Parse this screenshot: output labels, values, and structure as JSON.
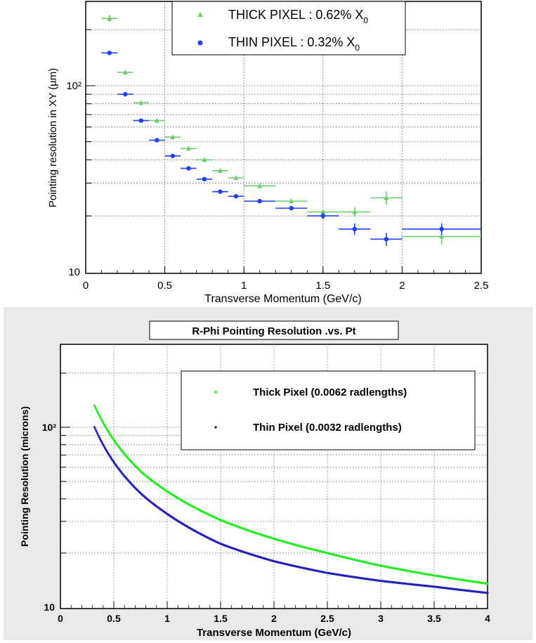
{
  "chart_data": [
    {
      "type": "scatter",
      "title": "",
      "xlabel": "Transverse Momentum  (GeV/c)",
      "ylabel": "Pointing resolution in XY (µm)",
      "xlim": [
        0,
        2.5
      ],
      "ylim": [
        10,
        300
      ],
      "yscale": "log",
      "grid": true,
      "legend_position": "top-center",
      "x_ticks": [
        "0",
        "0.5",
        "1",
        "1.5",
        "2",
        "2.5"
      ],
      "y_ticks": [
        "10",
        "10²"
      ],
      "error_bars": true,
      "series": [
        {
          "name": "THICK PIXEL : 0.62% X",
          "name_subscript": "0",
          "color": "#6ccf6c",
          "marker": "triangle",
          "x": [
            0.15,
            0.25,
            0.35,
            0.45,
            0.55,
            0.65,
            0.75,
            0.85,
            0.95,
            1.1,
            1.3,
            1.5,
            1.7,
            1.9,
            2.25
          ],
          "xerr": [
            0.05,
            0.05,
            0.05,
            0.05,
            0.05,
            0.05,
            0.05,
            0.05,
            0.05,
            0.1,
            0.1,
            0.1,
            0.1,
            0.1,
            0.25
          ],
          "y": [
            230,
            118,
            81,
            65,
            53,
            46,
            40,
            35,
            32,
            29,
            24,
            21,
            21,
            25,
            15.5
          ],
          "yerr": [
            10,
            3,
            2,
            1.5,
            1,
            1,
            1,
            0.8,
            0.7,
            0.6,
            0.6,
            0.5,
            1.2,
            2,
            1.5
          ]
        },
        {
          "name": "THIN PIXEL : 0.32% X",
          "name_subscript": "0",
          "color": "#1f3fff",
          "marker": "circle",
          "x": [
            0.15,
            0.25,
            0.35,
            0.45,
            0.55,
            0.65,
            0.75,
            0.85,
            0.95,
            1.1,
            1.3,
            1.5,
            1.7,
            1.9,
            2.25
          ],
          "xerr": [
            0.05,
            0.05,
            0.05,
            0.05,
            0.05,
            0.05,
            0.05,
            0.05,
            0.05,
            0.1,
            0.1,
            0.1,
            0.1,
            0.1,
            0.25
          ],
          "y": [
            150,
            90,
            65,
            51,
            42,
            36,
            31.5,
            27,
            25.5,
            24,
            22,
            20,
            17,
            15,
            17
          ],
          "yerr": [
            3,
            2,
            1.5,
            1,
            0.8,
            0.7,
            0.6,
            0.5,
            0.5,
            0.5,
            0.5,
            0.8,
            1.2,
            1.2,
            1.2
          ]
        }
      ]
    },
    {
      "type": "line",
      "title": "R-Phi Pointing Resolution .vs. Pt",
      "xlabel": "Transverse Momentum (GeV/c)",
      "ylabel": "Pointing Resolution (microns)",
      "xlim": [
        0,
        4
      ],
      "ylim": [
        10,
        300
      ],
      "yscale": "log",
      "grid": true,
      "legend_position": "top-right",
      "background": "#f0f0f0",
      "x_ticks": [
        "0",
        "0.5",
        "1",
        "1.5",
        "2",
        "2.5",
        "3",
        "3.5",
        "4"
      ],
      "y_ticks": [
        "10",
        "10²"
      ],
      "series": [
        {
          "name": "Thick Pixel (0.0062 radlengths)",
          "color": "#22ee22",
          "x": [
            0.32,
            0.4,
            0.5,
            0.75,
            1.0,
            1.5,
            2.0,
            2.5,
            3.0,
            3.5,
            4.0
          ],
          "y": [
            132,
            106,
            85,
            57,
            44,
            30.5,
            24,
            20,
            17,
            15,
            13.5
          ]
        },
        {
          "name": "Thin Pixel (0.0032 radlengths)",
          "color": "#2222bb",
          "x": [
            0.32,
            0.4,
            0.5,
            0.75,
            1.0,
            1.5,
            2.0,
            2.5,
            3.0,
            3.5,
            4.0
          ],
          "y": [
            100,
            80,
            64,
            43,
            33,
            22.5,
            18,
            15.5,
            14,
            13,
            12
          ]
        }
      ]
    }
  ]
}
